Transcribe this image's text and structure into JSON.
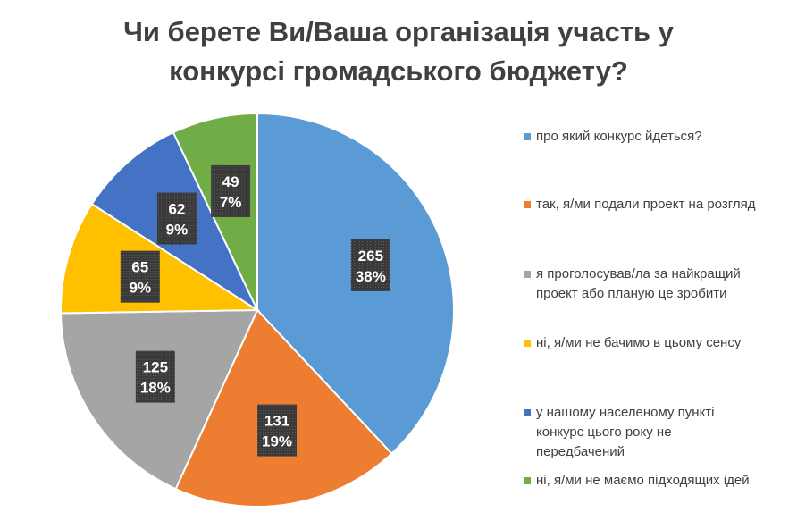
{
  "chart_data": {
    "type": "pie",
    "title": [
      "Чи берете Ви/Ваша організація участь у",
      "конкурсі громадського бюджету?"
    ],
    "legend_position": "right",
    "slices": [
      {
        "label": "про який конкурс йдеться?",
        "value": 265,
        "percent": "38%",
        "color": "#5B9BD5"
      },
      {
        "label": "так, я/ми подали проект на розгляд",
        "value": 131,
        "percent": "19%",
        "color": "#ED7D31"
      },
      {
        "label": "я проголосував/ла за найкращий проект або планую це зробити",
        "value": 125,
        "percent": "18%",
        "color": "#A5A5A5"
      },
      {
        "label": "ні, я/ми не бачимо в цьому сенсу",
        "value": 65,
        "percent": "9%",
        "color": "#FFC000"
      },
      {
        "label": "у нашому населеному пункті конкурс цього року не передбачений",
        "value": 62,
        "percent": "9%",
        "color": "#4472C4"
      },
      {
        "label": "ні, я/ми не маємо підходящих ідей",
        "value": 49,
        "percent": "7%",
        "color": "#70AD47"
      }
    ]
  }
}
